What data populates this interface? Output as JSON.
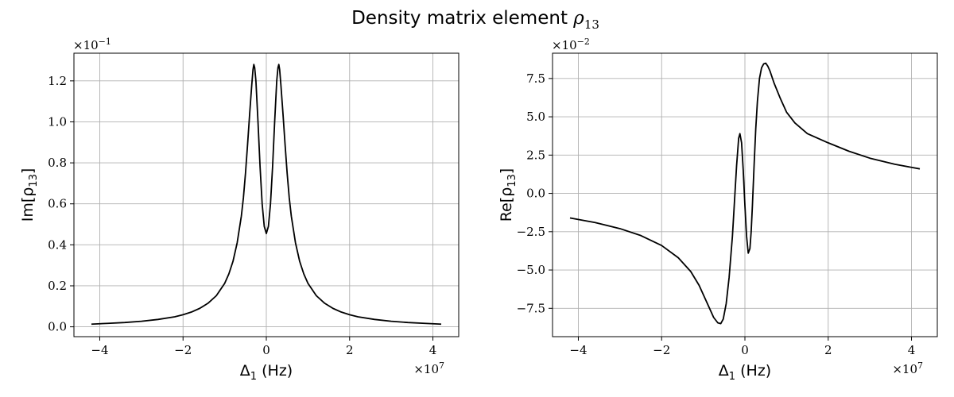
{
  "suptitle": {
    "text": "Density matrix element ",
    "symbol": "ρ",
    "subscript": "13"
  },
  "chart_data": [
    {
      "type": "line",
      "title": "",
      "xlabel": {
        "main": "Δ",
        "sub": "1",
        "rest": " (Hz)"
      },
      "ylabel": {
        "main": "Im[ρ",
        "sub": "13",
        "rest": "]"
      },
      "x_offset": {
        "base": "×10",
        "exp": "7"
      },
      "y_offset": {
        "base": "×10",
        "exp": "−1"
      },
      "xlim": [
        -4.62,
        4.62
      ],
      "ylim": [
        -0.048,
        1.335
      ],
      "xticks": [
        -4,
        -2,
        0,
        2,
        4
      ],
      "xtick_labels": [
        "−4",
        "−2",
        "0",
        "2",
        "4"
      ],
      "yticks": [
        0.0,
        0.2,
        0.4,
        0.6,
        0.8,
        1.0,
        1.2
      ],
      "ytick_labels": [
        "0.0",
        "0.2",
        "0.4",
        "0.6",
        "0.8",
        "1.0",
        "1.2"
      ],
      "grid": true,
      "line_color": "#000000",
      "series": [
        {
          "x": [
            -4.2,
            -3.8,
            -3.4,
            -3.0,
            -2.6,
            -2.2,
            -2.0,
            -1.8,
            -1.6,
            -1.4,
            -1.2,
            -1.0,
            -0.9,
            -0.8,
            -0.7,
            -0.6,
            -0.55,
            -0.5,
            -0.45,
            -0.4,
            -0.35,
            -0.32,
            -0.3,
            -0.28,
            -0.25,
            -0.2,
            -0.15,
            -0.1,
            -0.05,
            0.0,
            0.05,
            0.1,
            0.15,
            0.2,
            0.25,
            0.28,
            0.3,
            0.32,
            0.35,
            0.4,
            0.45,
            0.5,
            0.55,
            0.6,
            0.7,
            0.8,
            0.9,
            1.0,
            1.2,
            1.4,
            1.6,
            1.8,
            2.0,
            2.2,
            2.6,
            3.0,
            3.4,
            3.8,
            4.2
          ],
          "y": [
            0.013,
            0.017,
            0.021,
            0.027,
            0.036,
            0.049,
            0.059,
            0.072,
            0.09,
            0.115,
            0.152,
            0.212,
            0.258,
            0.32,
            0.41,
            0.54,
            0.63,
            0.75,
            0.89,
            1.04,
            1.18,
            1.255,
            1.28,
            1.265,
            1.2,
            1.0,
            0.78,
            0.6,
            0.49,
            0.455,
            0.49,
            0.6,
            0.78,
            1.0,
            1.2,
            1.265,
            1.28,
            1.255,
            1.18,
            1.04,
            0.89,
            0.75,
            0.63,
            0.54,
            0.41,
            0.32,
            0.258,
            0.212,
            0.152,
            0.115,
            0.09,
            0.072,
            0.059,
            0.049,
            0.036,
            0.027,
            0.021,
            0.017,
            0.013
          ]
        }
      ]
    },
    {
      "type": "line",
      "title": "",
      "xlabel": {
        "main": "Δ",
        "sub": "1",
        "rest": " (Hz)"
      },
      "ylabel": {
        "main": "Re[ρ",
        "sub": "13",
        "rest": "]"
      },
      "x_offset": {
        "base": "×10",
        "exp": "7"
      },
      "y_offset": {
        "base": "×10",
        "exp": "−2"
      },
      "xlim": [
        -4.62,
        4.62
      ],
      "ylim": [
        -9.35,
        9.15
      ],
      "xticks": [
        -4,
        -2,
        0,
        2,
        4
      ],
      "xtick_labels": [
        "−4",
        "−2",
        "0",
        "2",
        "4"
      ],
      "yticks": [
        -7.5,
        -5.0,
        -2.5,
        0.0,
        2.5,
        5.0,
        7.5
      ],
      "ytick_labels": [
        "−7.5",
        "−5.0",
        "−2.5",
        "0.0",
        "2.5",
        "5.0",
        "7.5"
      ],
      "grid": true,
      "line_color": "#000000",
      "series": [
        {
          "x": [
            -4.2,
            -3.6,
            -3.0,
            -2.5,
            -2.0,
            -1.6,
            -1.3,
            -1.1,
            -0.9,
            -0.75,
            -0.65,
            -0.58,
            -0.52,
            -0.45,
            -0.38,
            -0.3,
            -0.25,
            -0.2,
            -0.15,
            -0.12,
            -0.08,
            -0.04,
            0.0,
            0.04,
            0.08,
            0.12,
            0.15,
            0.18,
            0.22,
            0.26,
            0.3,
            0.35,
            0.4,
            0.45,
            0.5,
            0.55,
            0.6,
            0.7,
            0.85,
            1.0,
            1.2,
            1.5,
            2.0,
            2.5,
            3.0,
            3.6,
            4.2
          ],
          "y": [
            -1.6,
            -1.9,
            -2.3,
            -2.75,
            -3.4,
            -4.2,
            -5.1,
            -6.0,
            -7.2,
            -8.1,
            -8.45,
            -8.5,
            -8.2,
            -7.2,
            -5.5,
            -2.8,
            -0.5,
            1.8,
            3.6,
            3.9,
            3.3,
            1.5,
            -0.8,
            -2.8,
            -3.9,
            -3.6,
            -2.5,
            -0.8,
            1.8,
            4.2,
            6.0,
            7.5,
            8.2,
            8.45,
            8.5,
            8.3,
            8.0,
            7.2,
            6.2,
            5.3,
            4.6,
            3.9,
            3.3,
            2.75,
            2.3,
            1.9,
            1.6
          ]
        }
      ]
    }
  ]
}
